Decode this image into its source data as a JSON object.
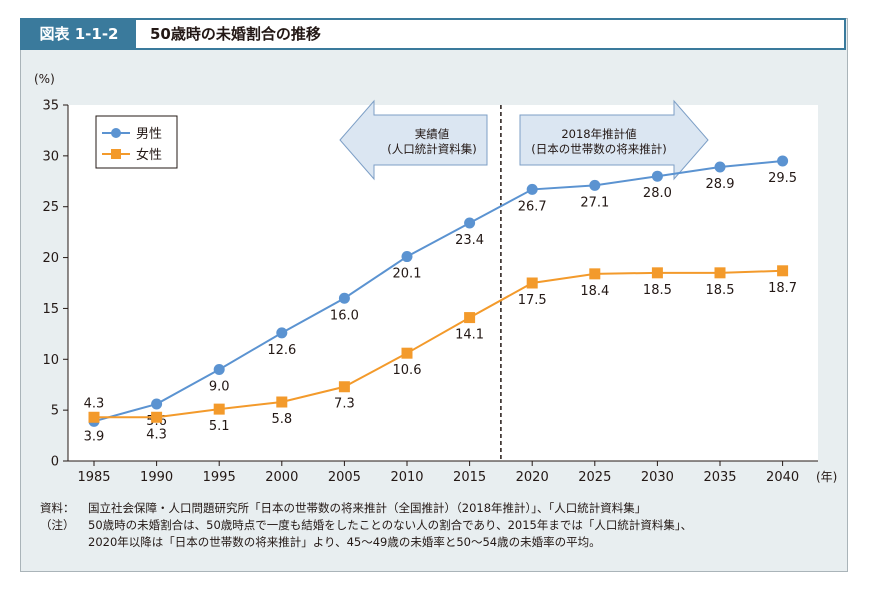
{
  "header": {
    "figure_number": "図表 1-1-2",
    "title": "50歳時の未婚割合の推移"
  },
  "chart_data": {
    "type": "line",
    "x": [
      1985,
      1990,
      1995,
      2000,
      2005,
      2010,
      2015,
      2020,
      2025,
      2030,
      2035,
      2040
    ],
    "series": [
      {
        "name": "男性",
        "color": "#5b93d1",
        "marker": "circle",
        "label_pos": "below",
        "values": [
          3.9,
          5.6,
          9.0,
          12.6,
          16.0,
          20.1,
          23.4,
          26.7,
          27.1,
          28.0,
          28.9,
          29.5
        ],
        "labels": [
          "3.9",
          "5.6",
          "9.0",
          "12.6",
          "16.0",
          "20.1",
          "23.4",
          "26.7",
          "27.1",
          "28.0",
          "28.9",
          "29.5"
        ]
      },
      {
        "name": "女性",
        "color": "#f39a2b",
        "marker": "square",
        "label_pos": "below",
        "values": [
          4.3,
          4.3,
          5.1,
          5.8,
          7.3,
          10.6,
          14.1,
          17.5,
          18.4,
          18.5,
          18.5,
          18.7
        ],
        "labels": [
          "4.3",
          "4.3",
          "5.1",
          "5.8",
          "7.3",
          "10.6",
          "14.1",
          "17.5",
          "18.4",
          "18.5",
          "18.5",
          "18.7"
        ]
      }
    ],
    "ylabel": "(%)",
    "xunit": "(年)",
    "ylim": [
      0,
      35
    ],
    "yticks": [
      0,
      5,
      10,
      15,
      20,
      25,
      30,
      35
    ],
    "grid": false,
    "legend": "top-left",
    "divider_after": 2015,
    "annotations": [
      {
        "text": [
          "実績値",
          "(人口統計資料集)"
        ],
        "direction": "left"
      },
      {
        "text": [
          "2018年推計値",
          "(日本の世帯数の将来推計)"
        ],
        "direction": "right"
      }
    ]
  },
  "notes": [
    {
      "head": "資料：",
      "lines": [
        "国立社会保障・人口問題研究所「日本の世帯数の将来推計（全国推計）（2018年推計）」、「人口統計資料集」"
      ]
    },
    {
      "head": "（注）",
      "lines": [
        "50歳時の未婚割合は、50歳時点で一度も結婚をしたことのない人の割合であり、2015年までは「人口統計資料集」、",
        "2020年以降は「日本の世帯数の将来推計」より、45～49歳の未婚率と50～54歳の未婚率の平均。"
      ]
    }
  ]
}
